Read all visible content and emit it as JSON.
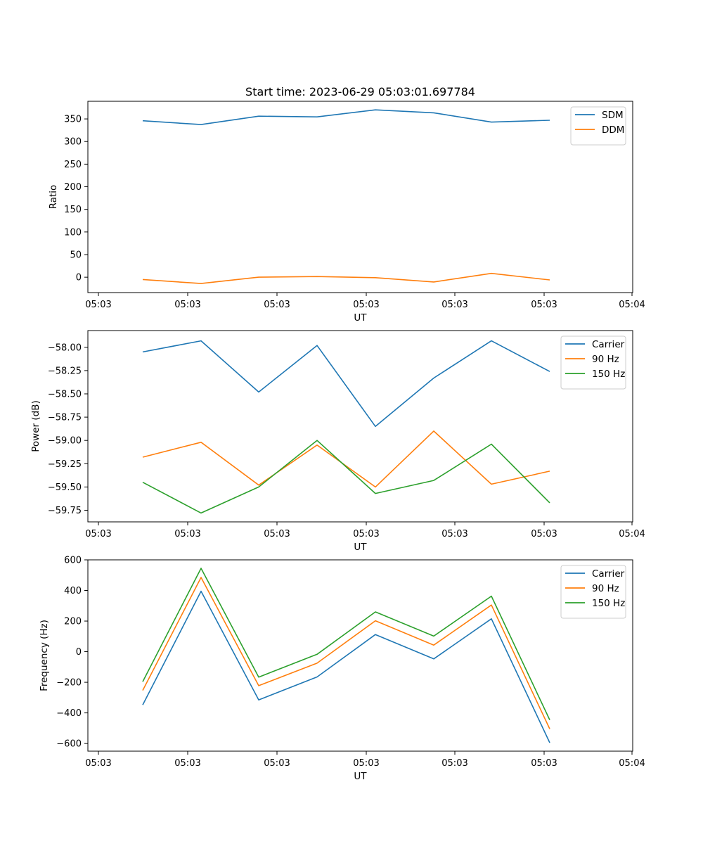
{
  "figure": {
    "title": "Start time: 2023-06-29 05:03:01.697784"
  },
  "chart_data": [
    {
      "type": "line",
      "title": "Start time: 2023-06-29 05:03:01.697784",
      "xlabel": "UT",
      "ylabel": "Ratio",
      "x_index": [
        1,
        2,
        3,
        4,
        5,
        6,
        7,
        8
      ],
      "x_tick_labels": [
        "05:03",
        "05:03",
        "05:03",
        "05:03",
        "05:03",
        "05:03",
        "05:04"
      ],
      "y_ticks": [
        0,
        50,
        100,
        150,
        200,
        250,
        300,
        350
      ],
      "ylim": [
        -34,
        389
      ],
      "legend_position": "upper right",
      "grid": false,
      "series": [
        {
          "name": "SDM",
          "color": "#1f77b4",
          "values": [
            346,
            337.5,
            356,
            354.5,
            370,
            363.5,
            343,
            347
          ]
        },
        {
          "name": "DDM",
          "color": "#ff7f0e",
          "values": [
            -5,
            -14,
            0,
            1.5,
            -1,
            -10.5,
            8.5,
            -6
          ]
        }
      ]
    },
    {
      "type": "line",
      "title": "",
      "xlabel": "UT",
      "ylabel": "Power (dB)",
      "x_index": [
        1,
        2,
        3,
        4,
        5,
        6,
        7,
        8
      ],
      "x_tick_labels": [
        "05:03",
        "05:03",
        "05:03",
        "05:03",
        "05:03",
        "05:03",
        "05:04"
      ],
      "y_ticks": [
        -59.75,
        -59.5,
        -59.25,
        -59.0,
        -58.75,
        -58.5,
        -58.25,
        -58.0
      ],
      "y_tick_labels": [
        "−59.75",
        "−59.50",
        "−59.25",
        "−59.00",
        "−58.75",
        "−58.50",
        "−58.25",
        "−58.00"
      ],
      "ylim": [
        -59.875,
        -57.82
      ],
      "legend_position": "upper right",
      "grid": false,
      "series": [
        {
          "name": "Carrier",
          "color": "#1f77b4",
          "values": [
            -58.05,
            -57.93,
            -58.48,
            -57.98,
            -58.85,
            -58.33,
            -57.93,
            -58.26
          ]
        },
        {
          "name": "90 Hz",
          "color": "#ff7f0e",
          "values": [
            -59.18,
            -59.02,
            -59.48,
            -59.05,
            -59.5,
            -58.9,
            -59.47,
            -59.33
          ]
        },
        {
          "name": "150 Hz",
          "color": "#2ca02c",
          "values": [
            -59.45,
            -59.78,
            -59.5,
            -59.0,
            -59.57,
            -59.43,
            -59.04,
            -59.67
          ]
        }
      ]
    },
    {
      "type": "line",
      "title": "",
      "xlabel": "UT",
      "ylabel": "Frequency (Hz)",
      "x_index": [
        1,
        2,
        3,
        4,
        5,
        6,
        7,
        8
      ],
      "x_tick_labels": [
        "05:03",
        "05:03",
        "05:03",
        "05:03",
        "05:03",
        "05:03",
        "05:04"
      ],
      "y_ticks": [
        -600,
        -400,
        -200,
        0,
        200,
        400,
        600
      ],
      "y_tick_labels": [
        "−600",
        "−400",
        "−200",
        "0",
        "200",
        "400",
        "600"
      ],
      "ylim": [
        -650,
        600
      ],
      "legend_position": "upper right",
      "grid": false,
      "series": [
        {
          "name": "Carrier",
          "color": "#1f77b4",
          "values": [
            -348,
            395,
            -315,
            -165,
            112,
            -47,
            215,
            -595
          ]
        },
        {
          "name": "90 Hz",
          "color": "#ff7f0e",
          "values": [
            -253,
            485,
            -222,
            -75,
            202,
            43,
            305,
            -505
          ]
        },
        {
          "name": "150 Hz",
          "color": "#2ca02c",
          "values": [
            -196,
            545,
            -166,
            -17,
            260,
            102,
            363,
            -446
          ]
        }
      ]
    }
  ]
}
